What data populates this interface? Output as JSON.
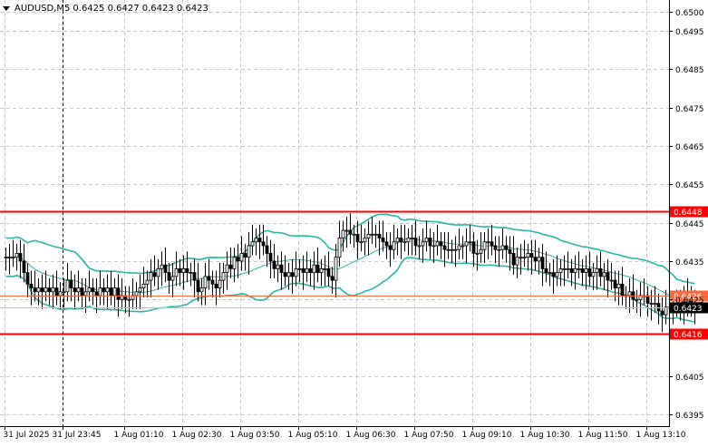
{
  "window": {
    "symbol": "AUDUSD,M5",
    "ohlc": "0.6425 0.6427 0.6423 0.6423"
  },
  "colors": {
    "background": "#ffffff",
    "grid": "#c8c8c8",
    "candle": "#000000",
    "bollinger": "#2ab5a5",
    "level_line": "#ff0000",
    "price_label_bg": "#000000",
    "level_label_bg": "#ff0000"
  },
  "chart_data": {
    "type": "candlestick",
    "y_ticks": [
      "0.6500",
      "0.6495",
      "0.6485",
      "0.6475",
      "0.6465",
      "0.6455",
      "0.6445",
      "0.6435",
      "0.6425",
      "0.6405",
      "0.6395"
    ],
    "y_tick_values": [
      0.65,
      0.6495,
      0.6485,
      0.6475,
      0.6465,
      0.6455,
      0.6445,
      0.6435,
      0.6425,
      0.6405,
      0.6395
    ],
    "ylim": [
      0.6392,
      0.6503
    ],
    "x_ticks": [
      "31 Jul 2025",
      "31 Jul 23:45",
      "1 Aug 01:10",
      "1 Aug 02:30",
      "1 Aug 03:50",
      "1 Aug 05:10",
      "1 Aug 06:30",
      "1 Aug 07:50",
      "1 Aug 09:10",
      "1 Aug 10:30",
      "1 Aug 11:50",
      "1 Aug 13:10"
    ],
    "x_tick_bars": [
      0,
      16,
      33,
      49,
      65,
      81,
      97,
      113,
      129,
      145,
      161,
      177
    ],
    "period_separator_bar": 16,
    "levels": [
      {
        "label": "0.6448",
        "value": 0.6448
      },
      {
        "label": "0.6416",
        "value": 0.6416
      }
    ],
    "reference_line": {
      "label": "0.6426",
      "value": 0.6426
    },
    "current_price": {
      "label": "0.6423",
      "value": 0.6423
    },
    "close_series": [
      0.6436,
      0.6436,
      0.6436,
      0.6437,
      0.6435,
      0.6432,
      0.6429,
      0.6428,
      0.6427,
      0.6428,
      0.6427,
      0.6428,
      0.6427,
      0.6428,
      0.6426,
      0.6427,
      0.6427,
      0.643,
      0.6428,
      0.6427,
      0.6428,
      0.6426,
      0.6427,
      0.6428,
      0.6427,
      0.6426,
      0.6428,
      0.6427,
      0.6428,
      0.6426,
      0.6428,
      0.6425,
      0.6426,
      0.6425,
      0.6425,
      0.6426,
      0.6427,
      0.6428,
      0.6429,
      0.643,
      0.6432,
      0.6431,
      0.6433,
      0.6434,
      0.6432,
      0.643,
      0.6431,
      0.6433,
      0.6432,
      0.6433,
      0.6432,
      0.6432,
      0.643,
      0.6427,
      0.6428,
      0.6431,
      0.643,
      0.6429,
      0.6428,
      0.643,
      0.6432,
      0.6434,
      0.6433,
      0.6436,
      0.6435,
      0.6437,
      0.6436,
      0.6439,
      0.644,
      0.6441,
      0.644,
      0.6439,
      0.6437,
      0.6435,
      0.6433,
      0.6434,
      0.6432,
      0.6431,
      0.6432,
      0.6431,
      0.6433,
      0.6433,
      0.6432,
      0.6433,
      0.6432,
      0.6434,
      0.6432,
      0.6433,
      0.6433,
      0.6431,
      0.643,
      0.6436,
      0.6441,
      0.6443,
      0.6443,
      0.6442,
      0.6442,
      0.644,
      0.644,
      0.6441,
      0.6442,
      0.6442,
      0.6442,
      0.6441,
      0.644,
      0.6439,
      0.6438,
      0.644,
      0.6441,
      0.644,
      0.644,
      0.6441,
      0.6441,
      0.6439,
      0.6439,
      0.644,
      0.6441,
      0.6439,
      0.6439,
      0.644,
      0.6439,
      0.6438,
      0.6438,
      0.6438,
      0.6438,
      0.6439,
      0.6439,
      0.644,
      0.644,
      0.6437,
      0.6437,
      0.6438,
      0.644,
      0.644,
      0.6439,
      0.6438,
      0.6438,
      0.6439,
      0.6438,
      0.6437,
      0.6434,
      0.6436,
      0.6436,
      0.6436,
      0.6437,
      0.6436,
      0.6435,
      0.6436,
      0.6433,
      0.6432,
      0.6432,
      0.6431,
      0.6432,
      0.6433,
      0.6433,
      0.6433,
      0.6432,
      0.6433,
      0.6433,
      0.6432,
      0.6433,
      0.6431,
      0.6432,
      0.6433,
      0.6431,
      0.6432,
      0.643,
      0.643,
      0.6428,
      0.6429,
      0.6426,
      0.6426,
      0.6427,
      0.6425,
      0.6425,
      0.6426,
      0.6426,
      0.6424,
      0.6424,
      0.6424,
      0.6422,
      0.6421,
      0.6423,
      0.6423,
      0.6423,
      0.6423,
      0.6425,
      0.6423,
      0.6426,
      0.6424,
      0.6423
    ]
  }
}
